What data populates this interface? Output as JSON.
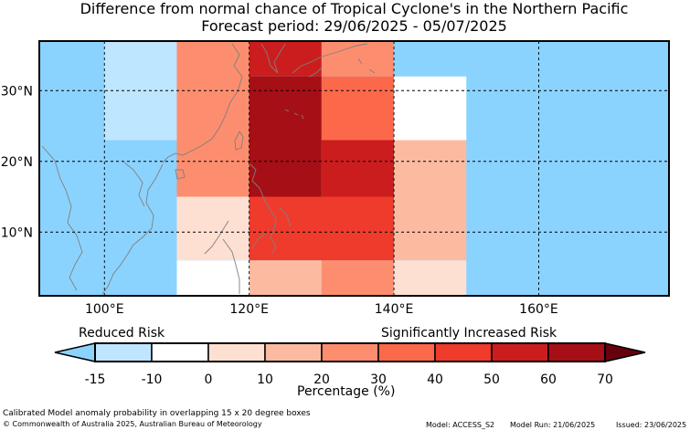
{
  "title": {
    "line1": "Difference from normal chance of Tropical Cyclone's in the Northern Pacific",
    "line2": "Forecast period: 29/06/2025 - 05/07/2025"
  },
  "map": {
    "lon_range": [
      91,
      178
    ],
    "lat_range": [
      1,
      37
    ],
    "lon_ticks": [
      {
        "value": 100,
        "label": "100°E"
      },
      {
        "value": 120,
        "label": "120°E"
      },
      {
        "value": 140,
        "label": "140°E"
      },
      {
        "value": 160,
        "label": "160°E"
      }
    ],
    "lat_ticks": [
      {
        "value": 30,
        "label": "30°N"
      },
      {
        "value": 20,
        "label": "20°N"
      },
      {
        "value": 10,
        "label": "10°N"
      }
    ],
    "background_color": "#8bd3ff",
    "cells": [
      {
        "lon": [
          100,
          110
        ],
        "lat": [
          23,
          37
        ],
        "color": "#bfe6ff"
      },
      {
        "lon": [
          110,
          120
        ],
        "lat": [
          15,
          37
        ],
        "color": "#fc8e6f"
      },
      {
        "lon": [
          120,
          130
        ],
        "lat": [
          32,
          37
        ],
        "color": "#cb1d1d"
      },
      {
        "lon": [
          120,
          130
        ],
        "lat": [
          15,
          32
        ],
        "color": "#a50f15"
      },
      {
        "lon": [
          130,
          140
        ],
        "lat": [
          32,
          37
        ],
        "color": "#fc8e6f"
      },
      {
        "lon": [
          130,
          140
        ],
        "lat": [
          23,
          32
        ],
        "color": "#fb694a"
      },
      {
        "lon": [
          130,
          140
        ],
        "lat": [
          15,
          23
        ],
        "color": "#cb1d1d"
      },
      {
        "lon": [
          140,
          150
        ],
        "lat": [
          23,
          32
        ],
        "color": "#ffffff"
      },
      {
        "lon": [
          140,
          150
        ],
        "lat": [
          6,
          23
        ],
        "color": "#fcbba1"
      },
      {
        "lon": [
          110,
          120
        ],
        "lat": [
          6,
          15
        ],
        "color": "#fee0d2"
      },
      {
        "lon": [
          120,
          140
        ],
        "lat": [
          6,
          15
        ],
        "color": "#ef3b2c"
      },
      {
        "lon": [
          110,
          120
        ],
        "lat": [
          1,
          6
        ],
        "color": "#ffffff"
      },
      {
        "lon": [
          120,
          130
        ],
        "lat": [
          1,
          6
        ],
        "color": "#fcbba1"
      },
      {
        "lon": [
          130,
          140
        ],
        "lat": [
          1,
          6
        ],
        "color": "#fc8e6f"
      },
      {
        "lon": [
          140,
          150
        ],
        "lat": [
          1,
          6
        ],
        "color": "#fee0d2"
      }
    ]
  },
  "colorbar": {
    "ticks": [
      "-15",
      "-10",
      "0",
      "10",
      "20",
      "30",
      "40",
      "50",
      "60",
      "70"
    ],
    "segment_colors": [
      "#bfe6ff",
      "#ffffff",
      "#fee0d2",
      "#fcbba1",
      "#fc8e6f",
      "#fb694a",
      "#ef3b2c",
      "#cb1d1d",
      "#a50f15"
    ],
    "left_extend_color": "#8bd3ff",
    "right_extend_color": "#67000d",
    "label": "Percentage (%)",
    "low_label": "Reduced Risk",
    "high_label": "Significantly Increased Risk"
  },
  "footer": {
    "description": "Calibrated Model anomaly probability in overlapping 15 x 20 degree boxes",
    "copyright": "© Commonwealth of Australia 2025, Australian Bureau of Meteorology",
    "model": "Model: ACCESS_S2",
    "model_run": "Model Run: 21/06/2025",
    "issued": "Issued: 23/06/2025"
  }
}
